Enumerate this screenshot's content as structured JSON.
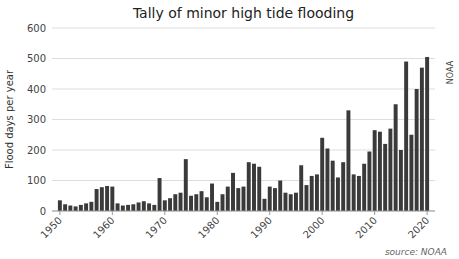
{
  "chart_data": {
    "type": "bar",
    "title": "Tally of minor high tide flooding",
    "y_label": "Flood days per year",
    "annotations": [
      "source: NOAA",
      "NOAA"
    ],
    "x": [
      1950,
      1951,
      1952,
      1953,
      1954,
      1955,
      1956,
      1957,
      1958,
      1959,
      1960,
      1961,
      1962,
      1963,
      1964,
      1965,
      1966,
      1967,
      1968,
      1969,
      1970,
      1971,
      1972,
      1973,
      1974,
      1975,
      1976,
      1977,
      1978,
      1979,
      1980,
      1981,
      1982,
      1983,
      1984,
      1985,
      1986,
      1987,
      1988,
      1989,
      1990,
      1991,
      1992,
      1993,
      1994,
      1995,
      1996,
      1997,
      1998,
      1999,
      2000,
      2001,
      2002,
      2003,
      2004,
      2005,
      2006,
      2007,
      2008,
      2009,
      2010,
      2011,
      2012,
      2013,
      2014,
      2015,
      2016,
      2017,
      2018,
      2019,
      2020
    ],
    "values": [
      35,
      22,
      18,
      15,
      20,
      25,
      30,
      72,
      78,
      82,
      80,
      25,
      18,
      20,
      22,
      28,
      32,
      25,
      20,
      108,
      35,
      42,
      55,
      60,
      170,
      50,
      55,
      65,
      45,
      90,
      30,
      55,
      80,
      125,
      75,
      80,
      160,
      155,
      145,
      40,
      80,
      75,
      100,
      60,
      55,
      60,
      150,
      85,
      115,
      120,
      240,
      205,
      165,
      110,
      160,
      330,
      120,
      115,
      155,
      195,
      265,
      260,
      220,
      270,
      350,
      200,
      490,
      250,
      400,
      470,
      505
    ],
    "color": "#3a3a3a",
    "xlim": [
      1948.5,
      2021.5
    ],
    "xticks": [
      1950,
      1960,
      1970,
      1980,
      1990,
      2000,
      2010,
      2020
    ],
    "ylim": [
      0,
      600
    ],
    "yticks": [
      0,
      100,
      200,
      300,
      400,
      500,
      600
    ],
    "grid": true
  }
}
